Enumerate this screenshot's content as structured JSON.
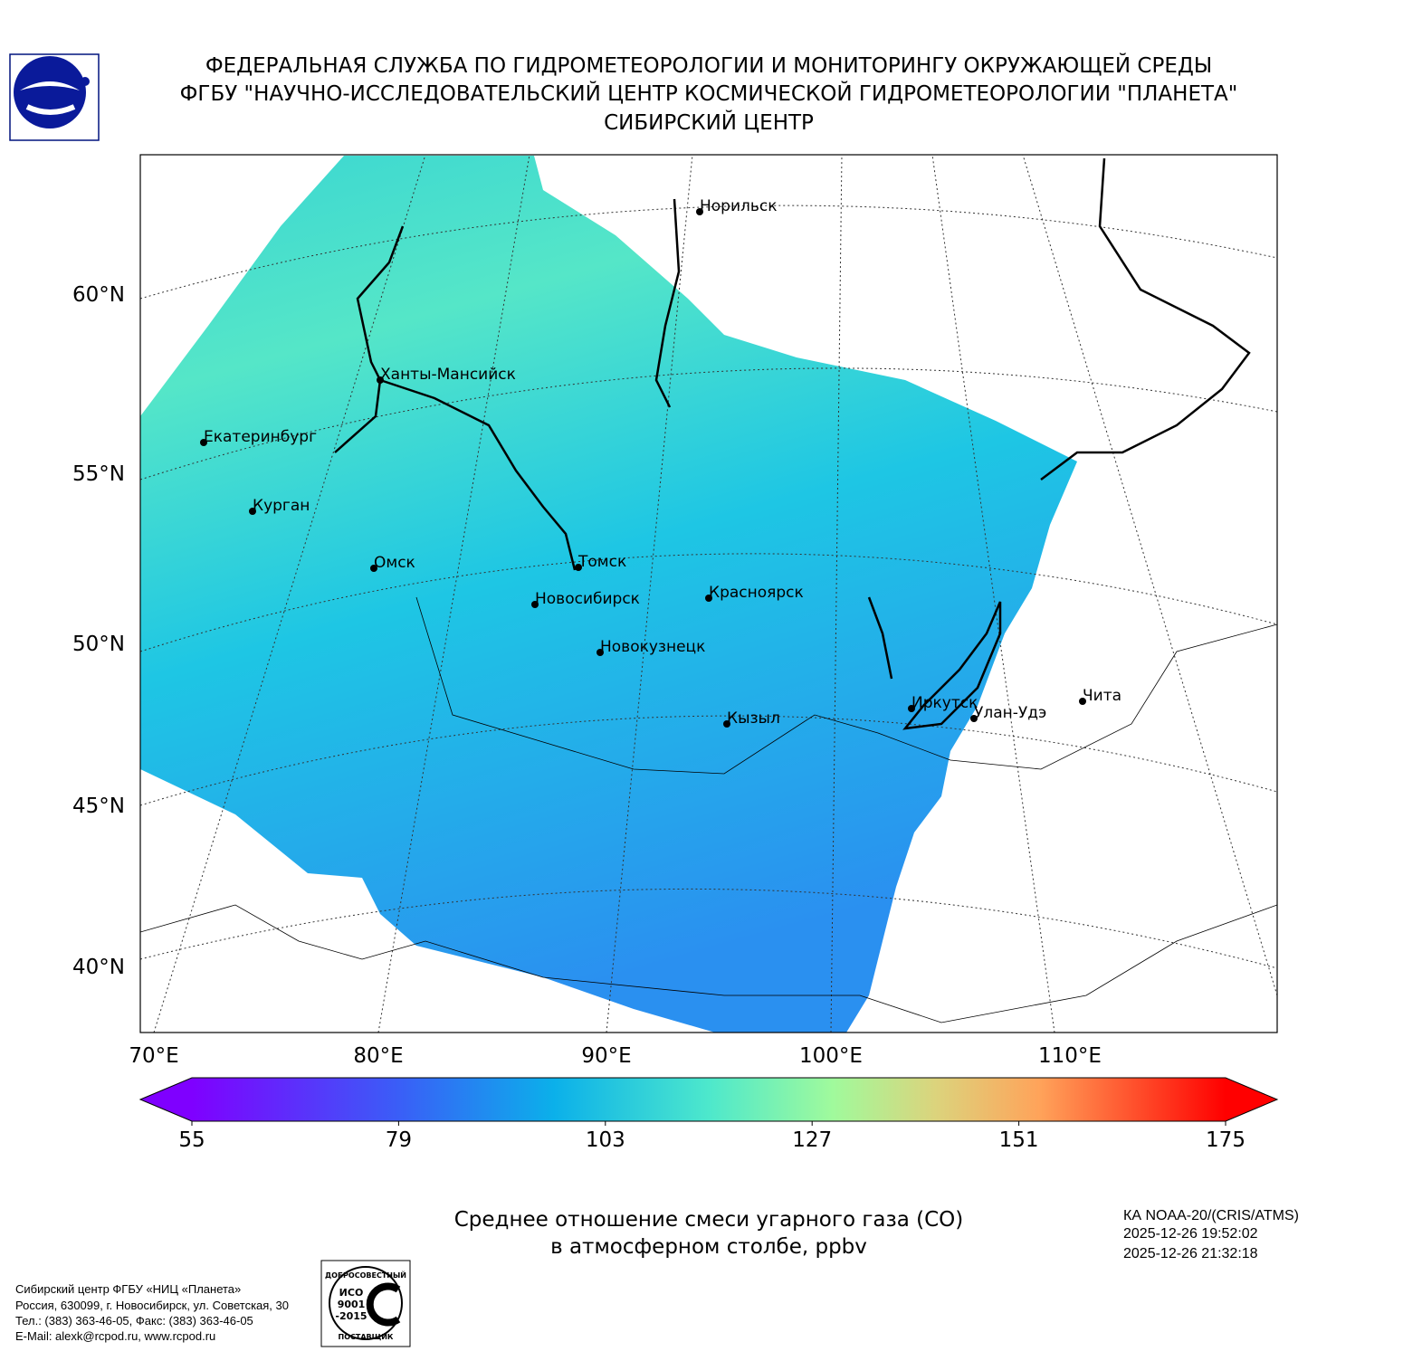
{
  "header": {
    "lines": [
      "ФЕДЕРАЛЬНАЯ СЛУЖБА ПО ГИДРОМЕТЕОРОЛОГИИ И МОНИТОРИНГУ ОКРУЖАЮЩЕЙ СРЕДЫ",
      "ФГБУ \"НАУЧНО-ИССЛЕДОВАТЕЛЬСКИЙ ЦЕНТР КОСМИЧЕСКОЙ ГИДРОМЕТЕОРОЛОГИИ \"ПЛАНЕТА\"",
      "СИБИРСКИЙ ЦЕНТР"
    ]
  },
  "map": {
    "lat_labels": [
      "60°N",
      "55°N",
      "50°N",
      "45°N",
      "40°N"
    ],
    "lon_labels": [
      "70°E",
      "80°E",
      "90°E",
      "100°E",
      "110°E"
    ],
    "cities": [
      "Норильск",
      "Ханты-Мансийск",
      "Екатеринбург",
      "Курган",
      "Омск",
      "Томск",
      "Новосибирск",
      "Красноярск",
      "Новокузнецк",
      "Иркутск",
      "Улан-Удэ",
      "Чита",
      "Кызыл"
    ]
  },
  "colorbar": {
    "range": [
      55,
      175
    ],
    "ticks": [
      55,
      79,
      103,
      127,
      151,
      175
    ]
  },
  "caption": [
    "Среднее отношение смеси угарного газа (CO)",
    "в атмосферном столбе, ppbv"
  ],
  "satellite": [
    "КА NOAA-20/(CRIS/ATMS)",
    "2025-12-26 19:52:02",
    "2025-12-26 21:32:18"
  ],
  "footer": [
    "Сибирский центр ФГБУ «НИЦ «Планета»",
    "Россия, 630099, г. Новосибирск, ул. Советская, 30",
    "Тел.: (383) 363-46-05, Факс: (383) 363-46-05",
    "E-Mail: alexk@rcpod.ru, www.rcpod.ru"
  ],
  "stamp": [
    "ДОБРОСОВЕСТНЫЙ",
    "ИСО",
    "9001",
    "-2015",
    "ПОСТАВЩИК"
  ]
}
